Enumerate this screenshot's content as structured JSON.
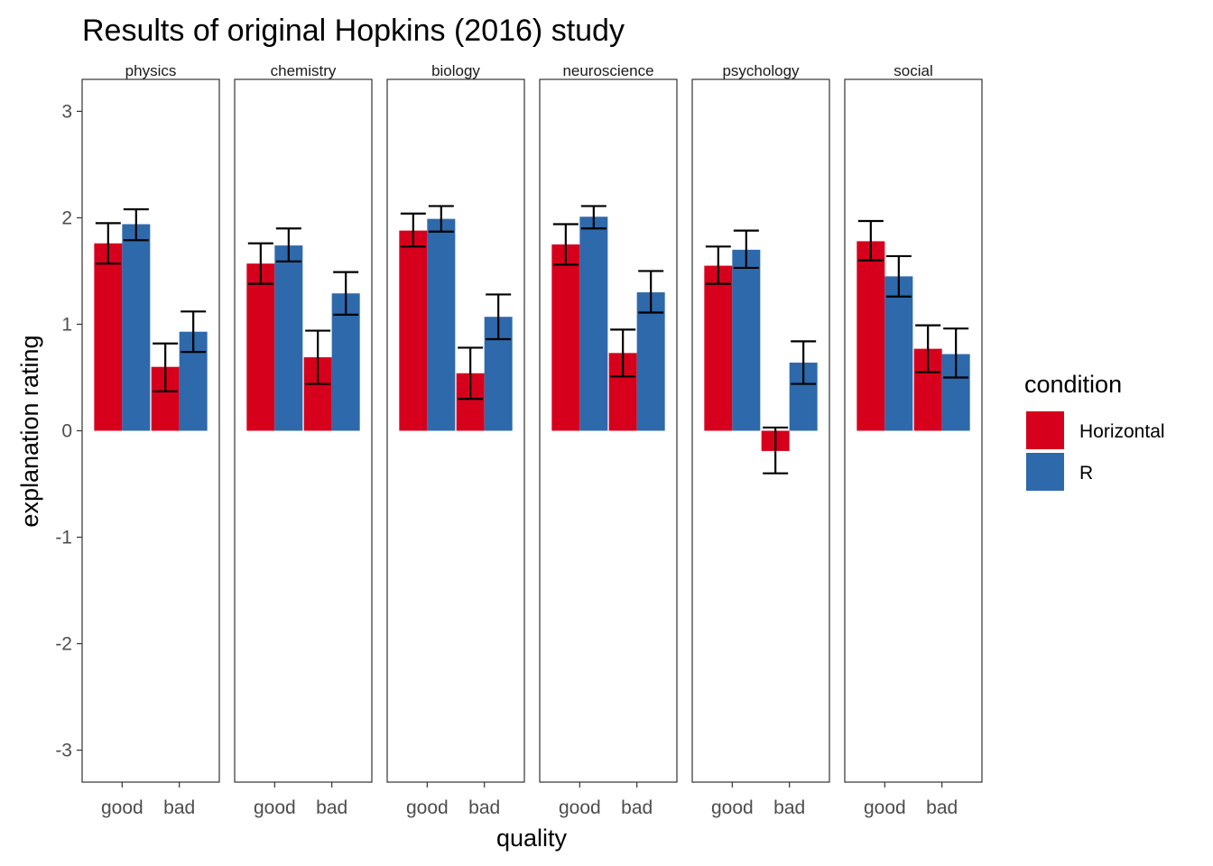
{
  "chart_data": {
    "type": "bar",
    "title": "Results of original Hopkins (2016) study",
    "xlabel": "quality",
    "ylabel": "explanation rating",
    "ylim": [
      -3.3,
      3.3
    ],
    "yticks": [
      -3,
      -2,
      -1,
      0,
      1,
      2,
      3
    ],
    "categories": [
      "good",
      "bad"
    ],
    "legend": {
      "title": "condition",
      "placement": "right",
      "entries": [
        "Horizontal",
        "R"
      ]
    },
    "colors": {
      "Horizontal": "#d7001c",
      "R": "#2e69ab"
    },
    "grid": false,
    "panels": [
      {
        "name": "physics",
        "series": [
          {
            "name": "Horizontal",
            "values": [
              1.76,
              0.6
            ],
            "err_low": [
              1.57,
              0.37
            ],
            "err_high": [
              1.95,
              0.82
            ]
          },
          {
            "name": "R",
            "values": [
              1.94,
              0.93
            ],
            "err_low": [
              1.79,
              0.74
            ],
            "err_high": [
              2.08,
              1.12
            ]
          }
        ]
      },
      {
        "name": "chemistry",
        "series": [
          {
            "name": "Horizontal",
            "values": [
              1.57,
              0.69
            ],
            "err_low": [
              1.38,
              0.44
            ],
            "err_high": [
              1.76,
              0.94
            ]
          },
          {
            "name": "R",
            "values": [
              1.74,
              1.29
            ],
            "err_low": [
              1.59,
              1.09
            ],
            "err_high": [
              1.9,
              1.49
            ]
          }
        ]
      },
      {
        "name": "biology",
        "series": [
          {
            "name": "Horizontal",
            "values": [
              1.88,
              0.54
            ],
            "err_low": [
              1.73,
              0.3
            ],
            "err_high": [
              2.04,
              0.78
            ]
          },
          {
            "name": "R",
            "values": [
              1.99,
              1.07
            ],
            "err_low": [
              1.87,
              0.86
            ],
            "err_high": [
              2.11,
              1.28
            ]
          }
        ]
      },
      {
        "name": "neuroscience",
        "series": [
          {
            "name": "Horizontal",
            "values": [
              1.75,
              0.73
            ],
            "err_low": [
              1.56,
              0.51
            ],
            "err_high": [
              1.94,
              0.95
            ]
          },
          {
            "name": "R",
            "values": [
              2.01,
              1.3
            ],
            "err_low": [
              1.9,
              1.11
            ],
            "err_high": [
              2.11,
              1.5
            ]
          }
        ]
      },
      {
        "name": "psychology",
        "series": [
          {
            "name": "Horizontal",
            "values": [
              1.55,
              -0.19
            ],
            "err_low": [
              1.38,
              -0.4
            ],
            "err_high": [
              1.73,
              0.03
            ]
          },
          {
            "name": "R",
            "values": [
              1.7,
              0.64
            ],
            "err_low": [
              1.53,
              0.44
            ],
            "err_high": [
              1.88,
              0.84
            ]
          }
        ]
      },
      {
        "name": "social",
        "series": [
          {
            "name": "Horizontal",
            "values": [
              1.78,
              0.77
            ],
            "err_low": [
              1.6,
              0.55
            ],
            "err_high": [
              1.97,
              0.99
            ]
          },
          {
            "name": "R",
            "values": [
              1.45,
              0.72
            ],
            "err_low": [
              1.26,
              0.5
            ],
            "err_high": [
              1.64,
              0.96
            ]
          }
        ]
      }
    ]
  }
}
